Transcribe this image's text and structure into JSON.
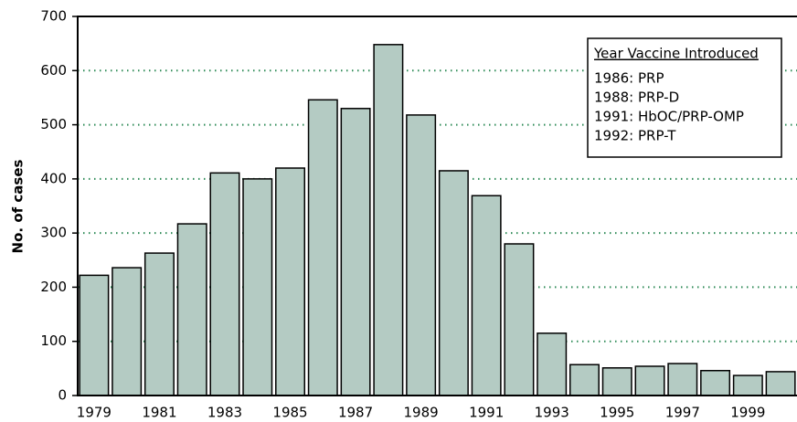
{
  "chart_data": {
    "type": "bar",
    "y_label": "No. of cases",
    "categories": [
      "1979",
      null,
      "1981",
      null,
      "1983",
      null,
      "1985",
      null,
      "1987",
      null,
      "1989",
      null,
      "1991",
      null,
      "1993",
      null,
      "1995",
      null,
      "1997",
      null,
      "1999",
      null
    ],
    "values": [
      222,
      236,
      263,
      317,
      411,
      400,
      420,
      546,
      530,
      648,
      518,
      415,
      369,
      280,
      115,
      57,
      51,
      54,
      59,
      46,
      37,
      44
    ],
    "color": "#b4cbc3",
    "grid_color": "#2e8b57",
    "ylim": [
      0,
      700
    ],
    "yticks": [
      0,
      100,
      200,
      300,
      400,
      500,
      600,
      700
    ],
    "grid": true,
    "legend": {
      "title": "Year Vaccine Introduced",
      "items": [
        "1986: PRP",
        "1988: PRP-D",
        "1991: HbOC/PRP-OMP",
        "1992: PRP-T"
      ]
    }
  }
}
